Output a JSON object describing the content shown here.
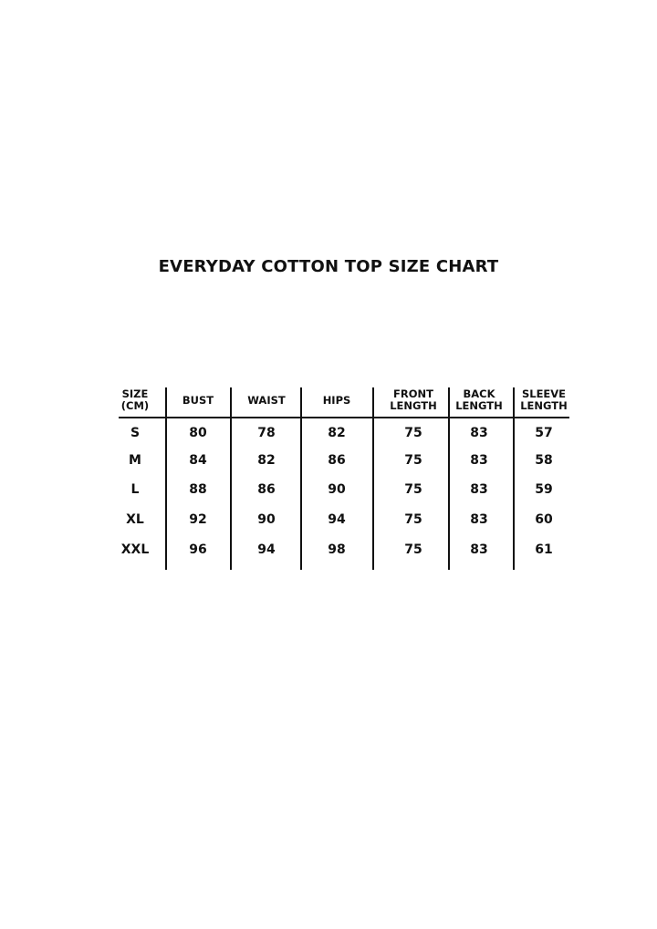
{
  "title": "EVERYDAY COTTON TOP SIZE CHART",
  "table": {
    "headers": [
      [
        "SIZE",
        "(CM)"
      ],
      [
        "BUST"
      ],
      [
        "WAIST"
      ],
      [
        "HIPS"
      ],
      [
        "FRONT",
        "LENGTH"
      ],
      [
        "BACK",
        "LENGTH"
      ],
      [
        "SLEEVE",
        "LENGTH"
      ]
    ],
    "rows": [
      [
        "S",
        "80",
        "78",
        "82",
        "75",
        "83",
        "57"
      ],
      [
        "M",
        "84",
        "82",
        "86",
        "75",
        "83",
        "58"
      ],
      [
        "L",
        "88",
        "86",
        "90",
        "75",
        "83",
        "59"
      ],
      [
        "XL",
        "92",
        "90",
        "94",
        "75",
        "83",
        "60"
      ],
      [
        "XXL",
        "96",
        "94",
        "98",
        "75",
        "83",
        "61"
      ]
    ]
  }
}
